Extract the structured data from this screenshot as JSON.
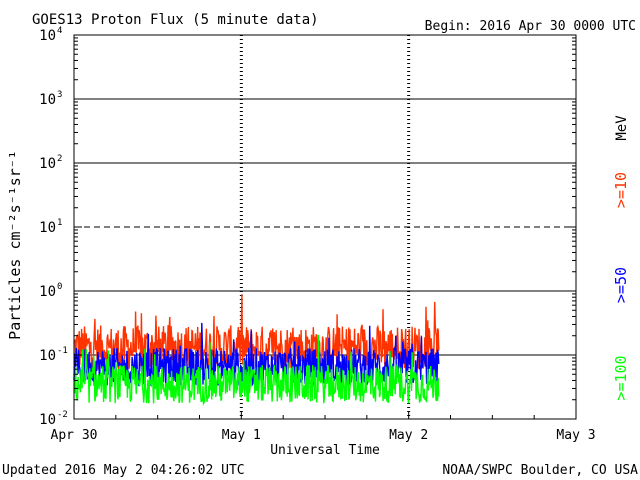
{
  "chart_data": {
    "type": "line",
    "title": "GOES13 Proton Flux (5 minute data)",
    "begin_label": "Begin: 2016 Apr 30 0000 UTC",
    "xlabel": "Universal Time",
    "ylabel": "Particles cm⁻²s⁻¹sr⁻¹",
    "y_scale": "log",
    "ylim": [
      0.01,
      10000
    ],
    "y_tick_values": [
      0.01,
      0.1,
      1,
      10,
      100,
      1000,
      10000
    ],
    "y_tick_labels": [
      {
        "base": "10",
        "exp": "-2"
      },
      {
        "base": "10",
        "exp": "-1"
      },
      {
        "base": "10",
        "exp": "0"
      },
      {
        "base": "10",
        "exp": "1"
      },
      {
        "base": "10",
        "exp": "2"
      },
      {
        "base": "10",
        "exp": "3"
      },
      {
        "base": "10",
        "exp": "4"
      }
    ],
    "xlim_days": [
      0,
      3
    ],
    "x_tick_labels": [
      {
        "day": 0,
        "label": "Apr 30"
      },
      {
        "day": 1,
        "label": "May 1"
      },
      {
        "day": 2,
        "label": "May 2"
      },
      {
        "day": 3,
        "label": "May 3"
      }
    ],
    "threshold_line": {
      "value": 10,
      "style": "dashed"
    },
    "data_end_day": 2.18,
    "unit_label": "MeV",
    "series": [
      {
        "name": ">=10",
        "color": "#ff3300",
        "baseline": 0.13,
        "spread": 0.35
      },
      {
        "name": ">=50",
        "color": "#0000ff",
        "baseline": 0.065,
        "spread": 0.3
      },
      {
        "name": ">=100",
        "color": "#00ff00",
        "baseline": 0.035,
        "spread": 0.3
      }
    ]
  },
  "footer": {
    "updated": "Updated 2016 May  2 04:26:02 UTC",
    "source": "NOAA/SWPC Boulder, CO USA"
  }
}
